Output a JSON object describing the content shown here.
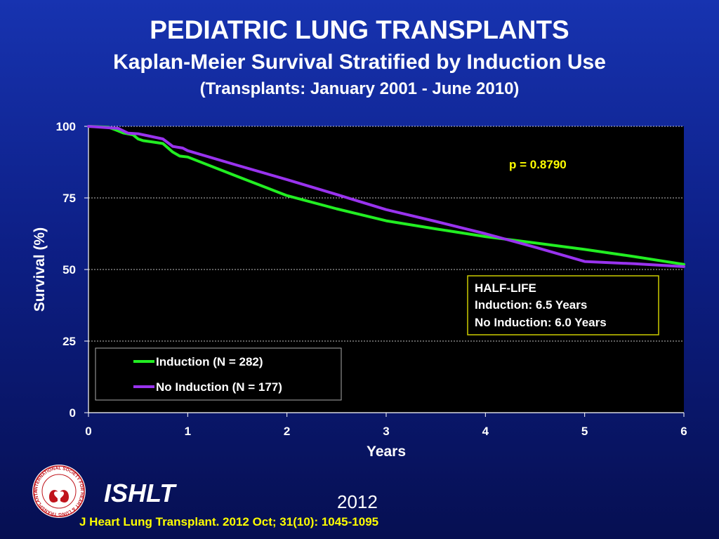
{
  "header": {
    "title": "PEDIATRIC LUNG TRANSPLANTS",
    "subtitle": "Kaplan-Meier Survival Stratified by Induction Use",
    "period": "(Transplants: January 2001 - June 2010)"
  },
  "chart_data": {
    "type": "line",
    "title": "Kaplan-Meier Survival Stratified by Induction Use",
    "xlabel": "Years",
    "ylabel": "Survival (%)",
    "xlim": [
      0,
      6
    ],
    "ylim": [
      0,
      100
    ],
    "xticks": [
      0,
      1,
      2,
      3,
      4,
      5,
      6
    ],
    "yticks": [
      0,
      25,
      50,
      75,
      100
    ],
    "grid": "horizontal dashed",
    "annotation": "p = 0.8790",
    "half_life": {
      "title": "HALF-LIFE",
      "line1": "Induction: 6.5 Years",
      "line2": "No Induction: 6.0 Years"
    },
    "legend_position": "lower-left",
    "series": [
      {
        "name": "Induction (N = 282)",
        "color": "#22ee22",
        "x": [
          0,
          0.2,
          0.27,
          0.35,
          0.45,
          0.5,
          0.55,
          0.65,
          0.75,
          0.85,
          0.92,
          1.0,
          1.5,
          2.0,
          2.5,
          3.0,
          3.5,
          4.0,
          4.5,
          5.0,
          5.5,
          6.0
        ],
        "y": [
          100,
          99.7,
          98.8,
          97.7,
          97.0,
          95.6,
          95.0,
          94.5,
          94.0,
          91.0,
          89.6,
          89.3,
          82.5,
          75.8,
          71.2,
          67.0,
          64.2,
          61.5,
          59.3,
          57.0,
          54.5,
          51.8
        ]
      },
      {
        "name": "No Induction (N = 177)",
        "color": "#9933ee",
        "x": [
          0,
          0.2,
          0.3,
          0.4,
          0.5,
          0.6,
          0.75,
          0.85,
          0.95,
          1.0,
          1.5,
          2.0,
          2.5,
          3.0,
          3.5,
          4.0,
          4.5,
          5.0,
          5.5,
          6.0
        ],
        "y": [
          100,
          99.5,
          99.3,
          97.6,
          97.4,
          96.7,
          95.6,
          93.0,
          92.4,
          91.5,
          86.4,
          81.4,
          76.2,
          70.9,
          66.8,
          62.5,
          57.8,
          52.8,
          52.0,
          51.0
        ]
      }
    ]
  },
  "footer": {
    "brand": "ISHLT",
    "year": "2012",
    "citation": "J Heart Lung Transplant.  2012 Oct; 31(10): 1045-1095",
    "logo_text": "INTERNATIONAL SOCIETY FOR HEART & LUNG TRANSPLANTATION"
  },
  "colors": {
    "annotation": "#ffff00",
    "halflife_border": "#cccc00",
    "plot_bg": "#000000"
  }
}
